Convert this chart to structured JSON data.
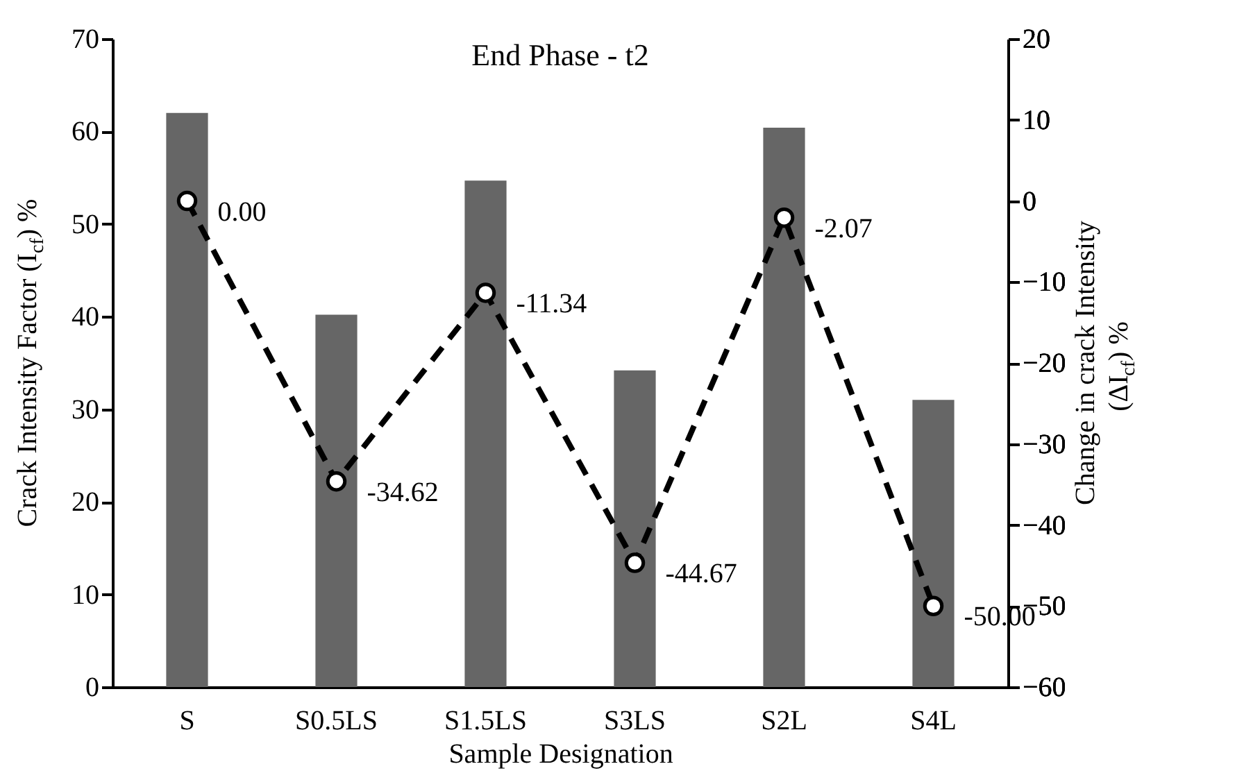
{
  "chart_data": {
    "type": "bar",
    "title": "End Phase - t2",
    "xlabel": "Sample Designation",
    "ylabel": "Crack Intensity Factor (I$_{cf}$) %",
    "y2label": "Change in crack Intensity (ΔI$_{cf}$)  %",
    "categories": [
      "S",
      "S0.5LS",
      "S1.5LS",
      "S3LS",
      "S2L",
      "S4L"
    ],
    "series": [
      {
        "color": "#666666",
        "values": [
          62.0,
          40.2,
          54.7,
          34.2,
          60.4,
          31.0
        ]
      },
      {
        "type": "line",
        "axis": "y2",
        "color": "#000000",
        "line_style": "dashed",
        "marker": "circle",
        "values": [
          0.0,
          -34.62,
          -11.34,
          -44.67,
          -2.07,
          -50.0
        ],
        "value_labels": [
          "0.00",
          "-34.62",
          "-11.34",
          "-44.67",
          "-2.07",
          "-50.00"
        ]
      }
    ],
    "ylim": [
      0,
      70
    ],
    "yticks": [
      0,
      10,
      20,
      30,
      40,
      50,
      60,
      70
    ],
    "y2lim": [
      -60,
      20
    ],
    "y2ticks": [
      -60,
      -50,
      -40,
      -30,
      -20,
      -10,
      0,
      10,
      20
    ],
    "grid": false
  }
}
